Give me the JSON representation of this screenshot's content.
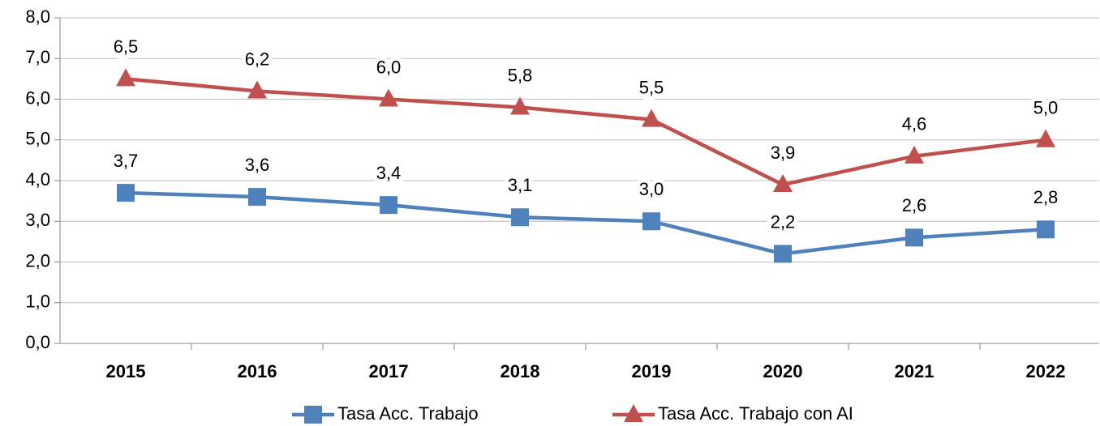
{
  "chart_data": {
    "type": "line",
    "categories": [
      "2015",
      "2016",
      "2017",
      "2018",
      "2019",
      "2020",
      "2021",
      "2022"
    ],
    "series": [
      {
        "name": "Tasa Acc. Trabajo",
        "color": "#4f81bd",
        "marker": "square",
        "values": [
          3.7,
          3.6,
          3.4,
          3.1,
          3.0,
          2.2,
          2.6,
          2.8
        ],
        "value_labels": [
          "3,7",
          "3,6",
          "3,4",
          "3,1",
          "3,0",
          "2,2",
          "2,6",
          "2,8"
        ]
      },
      {
        "name": "Tasa Acc. Trabajo con AI",
        "color": "#c0504d",
        "marker": "triangle",
        "values": [
          6.5,
          6.2,
          6.0,
          5.8,
          5.5,
          3.9,
          4.6,
          5.0
        ],
        "value_labels": [
          "6,5",
          "6,2",
          "6,0",
          "5,8",
          "5,5",
          "3,9",
          "4,6",
          "5,0"
        ]
      }
    ],
    "ylim": [
      0,
      8
    ],
    "yticks": [
      {
        "value": 0,
        "label": "0,0"
      },
      {
        "value": 1,
        "label": "1,0"
      },
      {
        "value": 2,
        "label": "2,0"
      },
      {
        "value": 3,
        "label": "3,0"
      },
      {
        "value": 4,
        "label": "4,0"
      },
      {
        "value": 5,
        "label": "5,0"
      },
      {
        "value": 6,
        "label": "6,0"
      },
      {
        "value": 7,
        "label": "7,0"
      },
      {
        "value": 8,
        "label": "8,0"
      }
    ],
    "grid": true,
    "legend": "bottom"
  }
}
